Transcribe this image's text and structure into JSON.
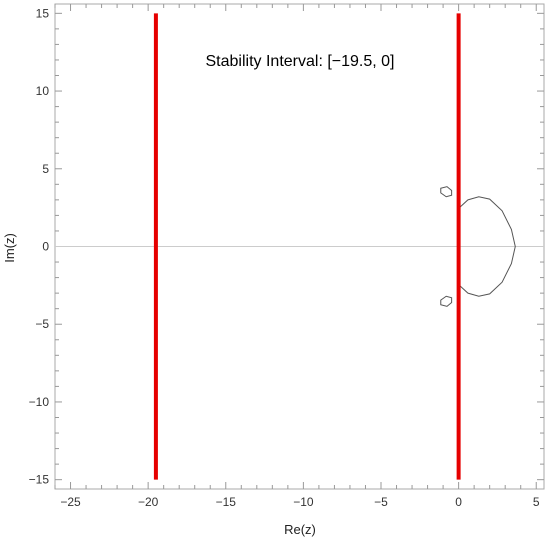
{
  "chart_data": {
    "type": "line",
    "title": "",
    "xlabel": "Re(z)",
    "ylabel": "Im(z)",
    "xlim": [
      -26,
      5.5
    ],
    "ylim": [
      -15.6,
      15.6
    ],
    "grid": false,
    "x_ticks": [
      -25,
      -20,
      -15,
      -10,
      -5,
      0,
      5
    ],
    "y_ticks": [
      -15,
      -10,
      -5,
      0,
      5,
      10,
      15
    ],
    "annotation": "Stability Interval: [−19.5, 0]",
    "colors": {
      "interval_line": "#e60000",
      "contour": "#555555",
      "zero_axis": "#cccccc",
      "frame": "#aaaaaa"
    },
    "interval": {
      "lower": -19.5,
      "upper": 0,
      "line_y_range": [
        -15,
        15
      ]
    },
    "contours": [
      {
        "points": [
          [
            0.0,
            2.45
          ],
          [
            0.6,
            3.0
          ],
          [
            1.3,
            3.2
          ],
          [
            2.0,
            3.05
          ],
          [
            2.8,
            2.3
          ],
          [
            3.4,
            1.1
          ],
          [
            3.65,
            0.0
          ],
          [
            3.4,
            -1.1
          ],
          [
            2.8,
            -2.3
          ],
          [
            2.0,
            -3.05
          ],
          [
            1.3,
            -3.2
          ],
          [
            0.6,
            -3.0
          ],
          [
            0.0,
            -2.45
          ]
        ],
        "closed": false
      },
      {
        "points": [
          [
            -1.15,
            3.75
          ],
          [
            -0.75,
            3.85
          ],
          [
            -0.45,
            3.6
          ],
          [
            -0.45,
            3.3
          ],
          [
            -0.8,
            3.2
          ],
          [
            -1.15,
            3.45
          ]
        ],
        "closed": true
      },
      {
        "points": [
          [
            -1.15,
            -3.75
          ],
          [
            -0.75,
            -3.85
          ],
          [
            -0.45,
            -3.6
          ],
          [
            -0.45,
            -3.3
          ],
          [
            -0.8,
            -3.2
          ],
          [
            -1.15,
            -3.45
          ]
        ],
        "closed": true
      }
    ]
  }
}
